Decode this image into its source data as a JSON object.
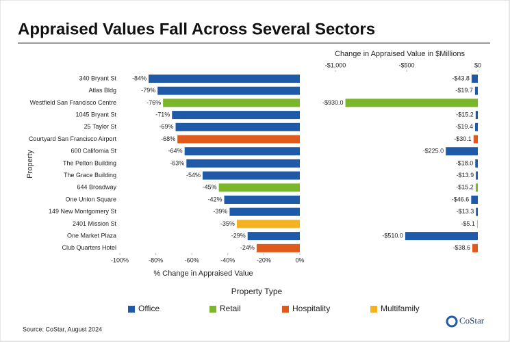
{
  "title": "Appraised Values Fall Across Several Sectors",
  "source": "Source: CoStar, August 2024",
  "logo": "CoStar",
  "legend": {
    "title": "Property Type",
    "items": [
      {
        "name": "Office",
        "color": "#1f5aa8"
      },
      {
        "name": "Retail",
        "color": "#7ab829"
      },
      {
        "name": "Hospitality",
        "color": "#e05a1c"
      },
      {
        "name": "Multifamily",
        "color": "#f5b323"
      }
    ]
  },
  "chart_data": [
    {
      "type": "hbar",
      "xlabel": "% Change in Appraised Value",
      "ylabel": "Property",
      "categories": [
        "340 Bryant St",
        "Atlas Bldg",
        "Westfield San Francisco Centre",
        "1045 Bryant St",
        "25 Taylor St",
        "Courtyard San Francisco Airport",
        "600 California St",
        "The Pelton Building",
        "The Grace Building",
        "644 Broadway",
        "One Union Square",
        "149 New Montgomery St",
        "2401 Mission St",
        "One Market Plaza",
        "Club Quarters Hotel"
      ],
      "values": [
        -84,
        -79,
        -76,
        -71,
        -69,
        -68,
        -64,
        -63,
        -54,
        -45,
        -42,
        -39,
        -35,
        -29,
        -24
      ],
      "value_labels": [
        "-84%",
        "-79%",
        "-76%",
        "-71%",
        "-69%",
        "-68%",
        "-64%",
        "-63%",
        "-54%",
        "-45%",
        "-42%",
        "-39%",
        "-35%",
        "-29%",
        "-24%"
      ],
      "colors": [
        "#1f5aa8",
        "#1f5aa8",
        "#7ab829",
        "#1f5aa8",
        "#1f5aa8",
        "#e05a1c",
        "#1f5aa8",
        "#1f5aa8",
        "#1f5aa8",
        "#7ab829",
        "#1f5aa8",
        "#1f5aa8",
        "#f5b323",
        "#1f5aa8",
        "#e05a1c"
      ],
      "xlim": [
        -100,
        0
      ],
      "xticks": [
        {
          "value": -100,
          "label": "-100%"
        },
        {
          "value": -80,
          "label": "-80%"
        },
        {
          "value": -60,
          "label": "-60%"
        },
        {
          "value": -40,
          "label": "-40%"
        },
        {
          "value": -20,
          "label": "-20%"
        },
        {
          "value": 0,
          "label": "0%"
        }
      ],
      "xtick_position": "bottom"
    },
    {
      "type": "hbar",
      "title": "Change in Appraised Value in $Millions",
      "values": [
        -43.8,
        -19.7,
        -930.0,
        -15.2,
        -19.4,
        -30.1,
        -225.0,
        -18.0,
        -13.9,
        -15.2,
        -46.6,
        -13.3,
        -5.1,
        -510.0,
        -38.6
      ],
      "value_labels": [
        "-$43.8",
        "-$19.7",
        "-$930.0",
        "-$15.2",
        "-$19.4",
        "-$30.1",
        "-$225.0",
        "-$18.0",
        "-$13.9",
        "-$15.2",
        "-$46.6",
        "-$13.3",
        "-$5.1",
        "-$510.0",
        "-$38.6"
      ],
      "colors": [
        "#1f5aa8",
        "#1f5aa8",
        "#7ab829",
        "#1f5aa8",
        "#1f5aa8",
        "#e05a1c",
        "#1f5aa8",
        "#1f5aa8",
        "#1f5aa8",
        "#7ab829",
        "#1f5aa8",
        "#1f5aa8",
        "#f5b323",
        "#1f5aa8",
        "#e05a1c"
      ],
      "xlim": [
        -1000,
        0
      ],
      "xticks": [
        {
          "value": -1000,
          "label": "-$1,000"
        },
        {
          "value": -500,
          "label": "-$500"
        },
        {
          "value": 0,
          "label": "$0"
        }
      ],
      "xtick_position": "top"
    }
  ]
}
